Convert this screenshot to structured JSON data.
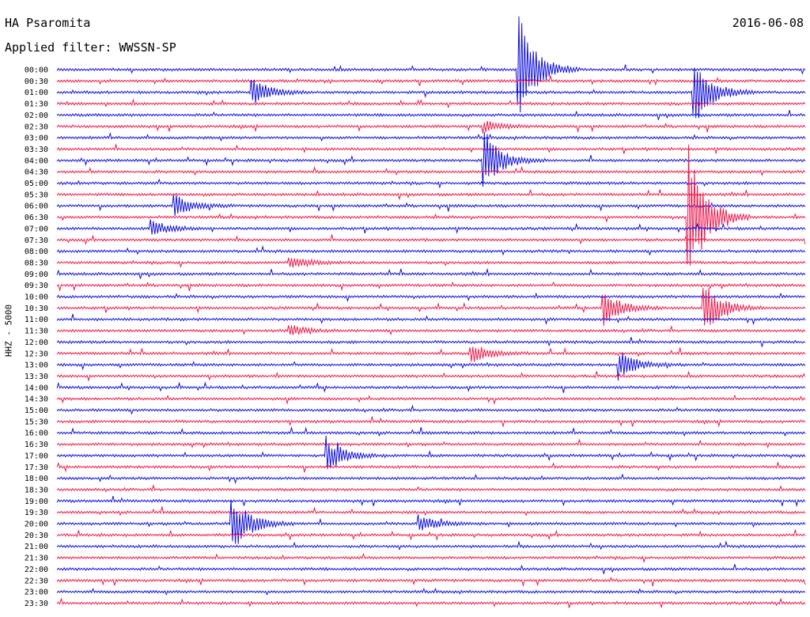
{
  "header": {
    "station": "HA Psaromita",
    "filter": "Applied filter: WWSSN-SP",
    "date": "2016-06-08",
    "channel": "HHZ - 5000"
  },
  "colors": {
    "odd_trace": "#1010e0",
    "even_trace": "#ee1a4a"
  },
  "chart_data": {
    "type": "line",
    "title": "HA Psaromita",
    "subtitle": "Applied filter: WWSSN-SP",
    "ylabel": "HHZ - 5000",
    "date": "2016-06-08",
    "row_duration_minutes": 30,
    "rows": [
      "00:00",
      "00:30",
      "01:00",
      "01:30",
      "02:00",
      "02:30",
      "03:00",
      "03:30",
      "04:00",
      "04:30",
      "05:00",
      "05:30",
      "06:00",
      "06:30",
      "07:00",
      "07:30",
      "08:00",
      "08:30",
      "09:00",
      "09:30",
      "10:00",
      "10:30",
      "11:00",
      "11:30",
      "12:00",
      "12:30",
      "13:00",
      "13:30",
      "14:00",
      "14:30",
      "15:00",
      "15:30",
      "16:00",
      "16:30",
      "17:00",
      "17:30",
      "18:00",
      "18:30",
      "19:00",
      "19:30",
      "20:00",
      "20:30",
      "21:00",
      "21:30",
      "22:00",
      "22:30",
      "23:00",
      "23:30"
    ],
    "color_order": [
      "blue",
      "red"
    ],
    "events": [
      {
        "row": 0,
        "minute": 18.5,
        "amp": 5.2
      },
      {
        "row": 2,
        "minute": 7.8,
        "amp": 1.3
      },
      {
        "row": 2,
        "minute": 25.5,
        "amp": 3.2
      },
      {
        "row": 5,
        "minute": 17.1,
        "amp": 0.5
      },
      {
        "row": 8,
        "minute": 17.1,
        "amp": 2.8
      },
      {
        "row": 12,
        "minute": 4.7,
        "amp": 1.0
      },
      {
        "row": 13,
        "minute": 25.3,
        "amp": 7.0
      },
      {
        "row": 14,
        "minute": 3.8,
        "amp": 0.7
      },
      {
        "row": 17,
        "minute": 9.3,
        "amp": 0.6
      },
      {
        "row": 21,
        "minute": 21.9,
        "amp": 1.6
      },
      {
        "row": 21,
        "minute": 25.9,
        "amp": 2.6
      },
      {
        "row": 23,
        "minute": 9.3,
        "amp": 0.5
      },
      {
        "row": 25,
        "minute": 16.6,
        "amp": 0.9
      },
      {
        "row": 26,
        "minute": 22.5,
        "amp": 1.3
      },
      {
        "row": 34,
        "minute": 10.8,
        "amp": 1.6
      },
      {
        "row": 40,
        "minute": 7.0,
        "amp": 2.8
      },
      {
        "row": 40,
        "minute": 14.5,
        "amp": 0.8
      }
    ]
  }
}
